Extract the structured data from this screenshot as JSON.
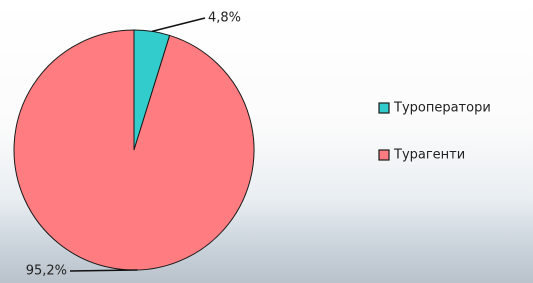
{
  "chart_data": {
    "type": "pie",
    "categories": [
      "Туроператори",
      "Турагенти"
    ],
    "values": [
      4.8,
      95.2
    ],
    "value_labels": [
      "4,8%",
      "95,2%"
    ],
    "colors": [
      "#33cccc",
      "#ff7c80"
    ],
    "legend": "right"
  }
}
